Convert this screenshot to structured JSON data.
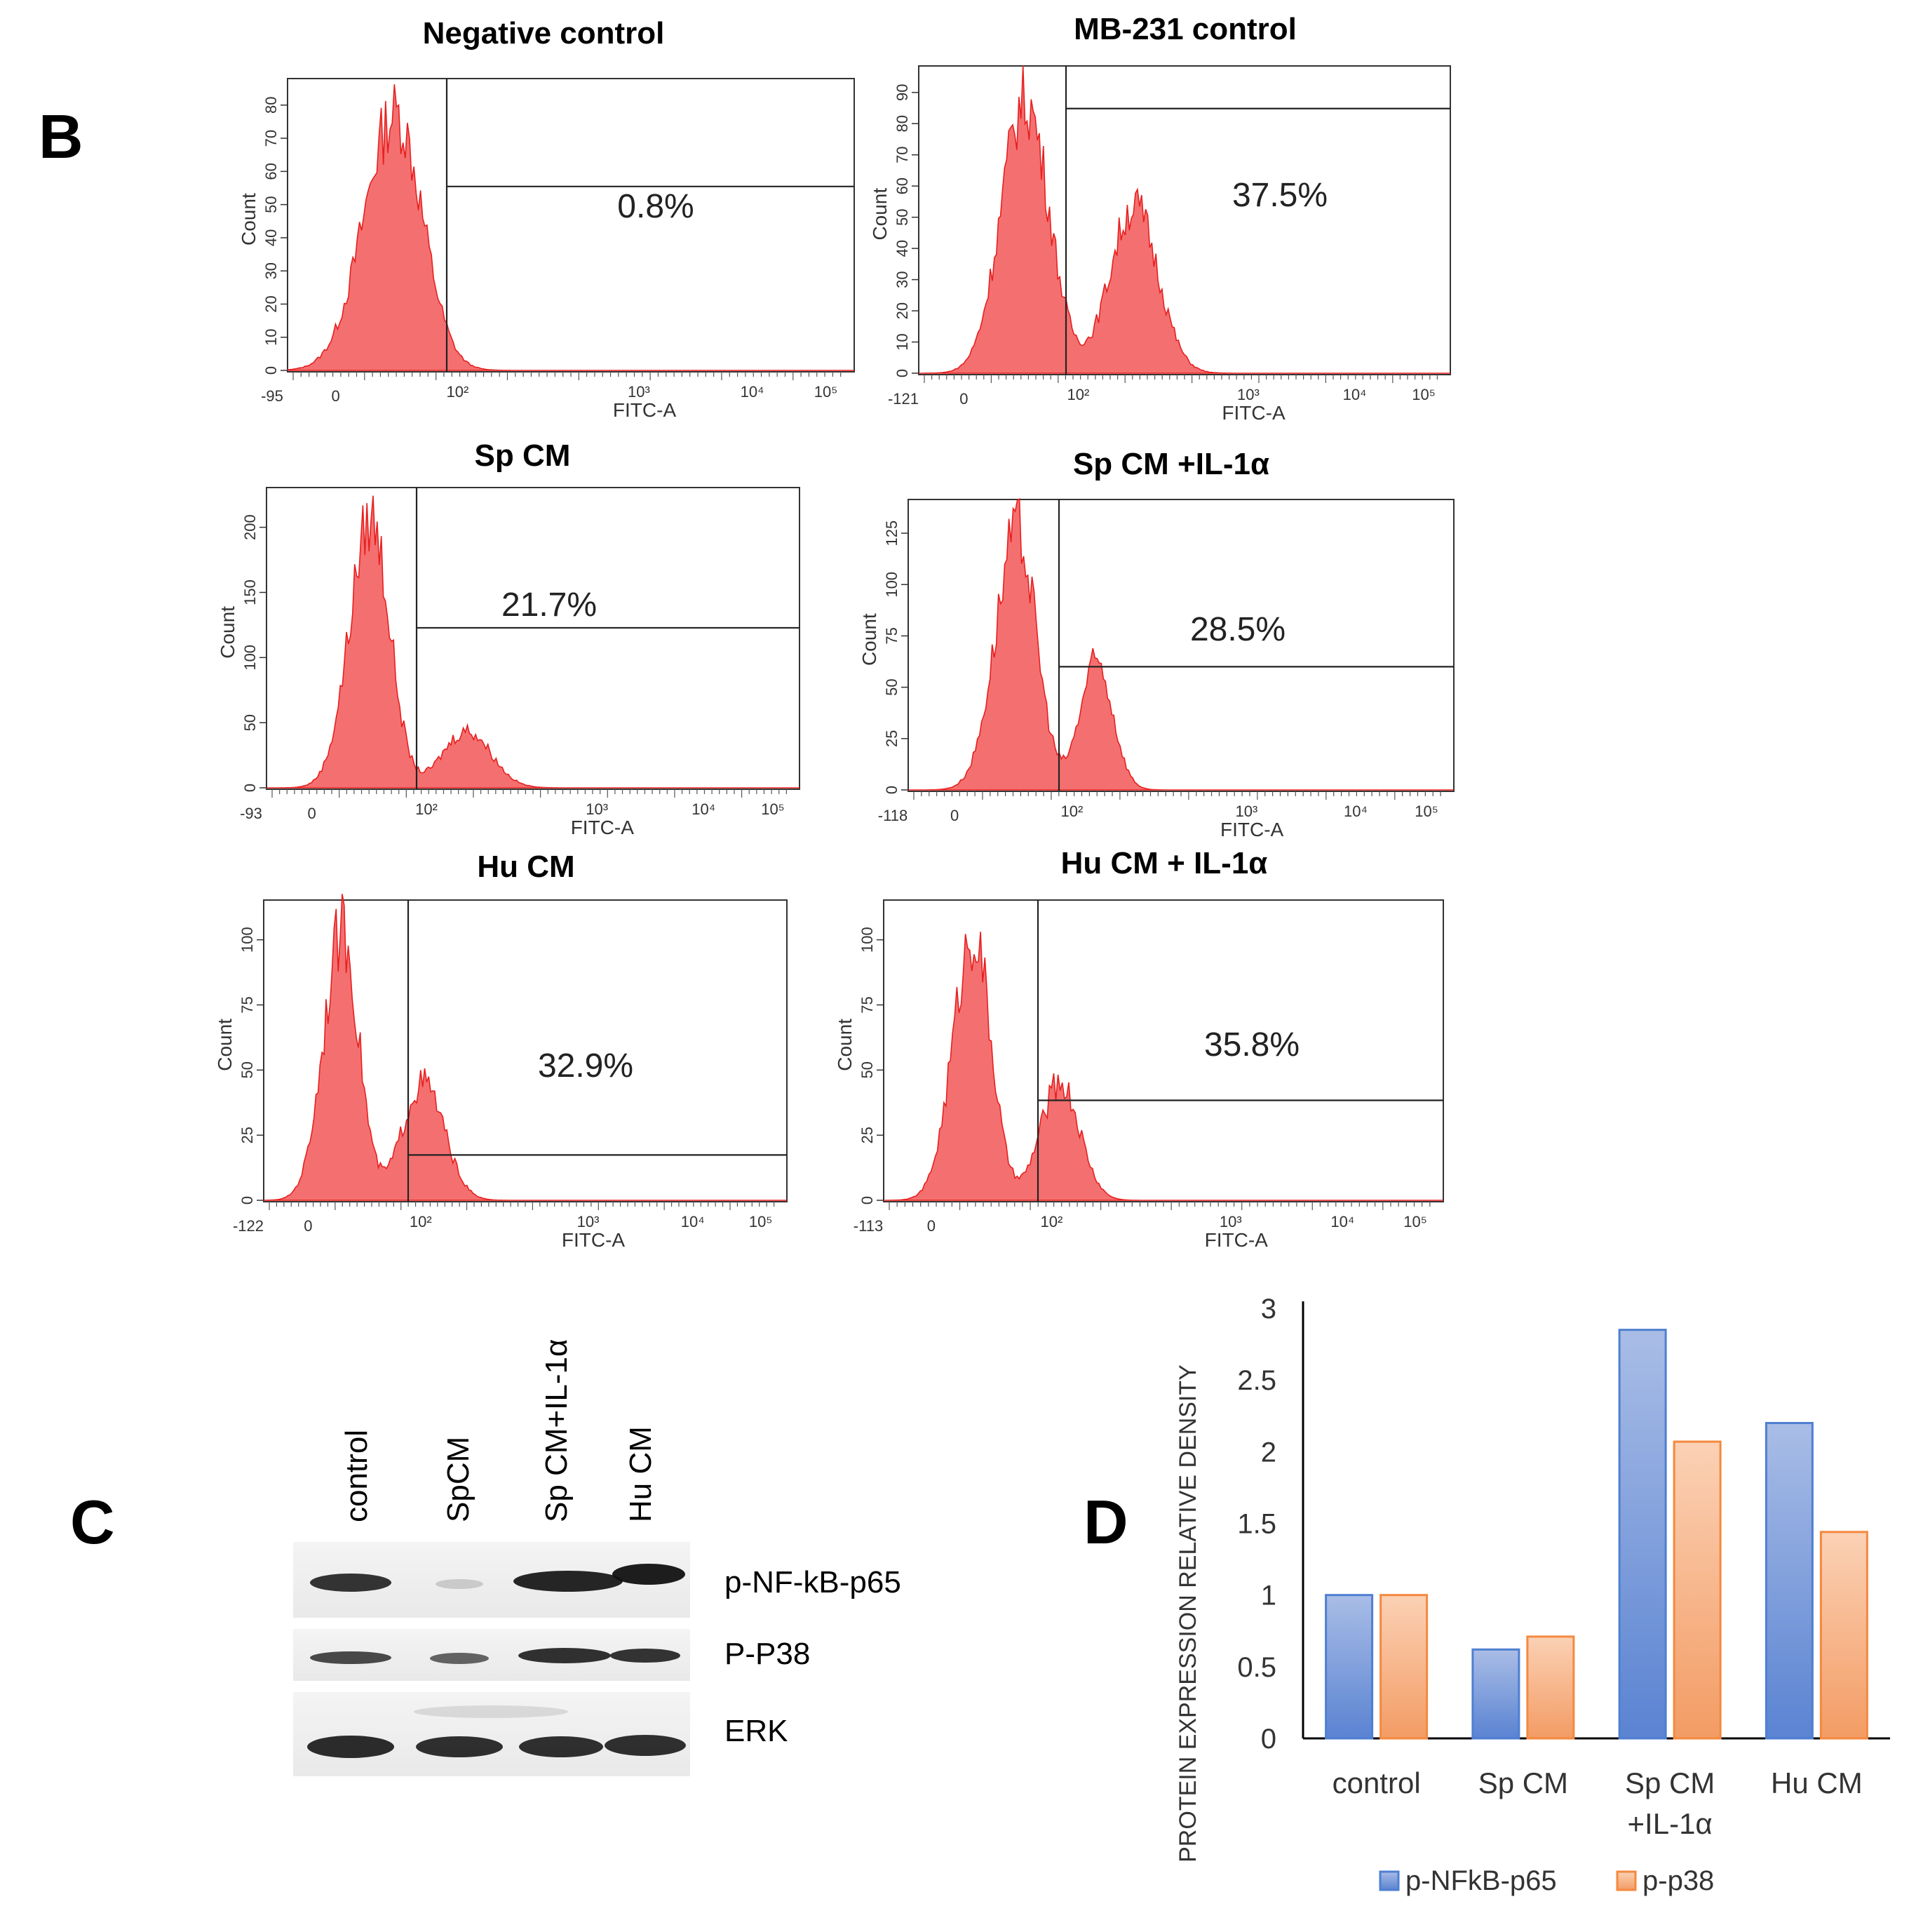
{
  "panels": {
    "b": "B",
    "c": "C",
    "d": "D"
  },
  "flow": {
    "x_axis_label": "FITC-A",
    "y_axis_label": "Count",
    "x_ticks": [
      "10²",
      "10³",
      "10⁴",
      "10⁵"
    ],
    "histograms": [
      {
        "title": "Negative control",
        "percent": "0.8%",
        "x_min_label": "-95",
        "y_ticks": [
          "0",
          "10",
          "20",
          "30",
          "40",
          "50",
          "60",
          "70",
          "80"
        ],
        "hist_color": "#f25050"
      },
      {
        "title": "MB-231 control",
        "percent": "37.5%",
        "x_min_label": "-121",
        "y_ticks": [
          "0",
          "10",
          "20",
          "30",
          "40",
          "50",
          "60",
          "70",
          "80",
          "90"
        ],
        "hist_color": "#f25050"
      },
      {
        "title": "Sp CM",
        "percent": "21.7%",
        "x_min_label": "-93",
        "y_ticks": [
          "0",
          "50",
          "100",
          "150",
          "200"
        ],
        "hist_color": "#f25050"
      },
      {
        "title": "Sp CM +IL-1α",
        "percent": "28.5%",
        "x_min_label": "-118",
        "y_ticks": [
          "0",
          "25",
          "50",
          "75",
          "100",
          "125"
        ],
        "hist_color": "#f25050"
      },
      {
        "title": "Hu CM",
        "percent": "32.9%",
        "x_min_label": "-122",
        "y_ticks": [
          "0",
          "25",
          "50",
          "75",
          "100"
        ],
        "hist_color": "#f25050"
      },
      {
        "title": "Hu CM + IL-1α",
        "percent": "35.8%",
        "x_min_label": "-113",
        "y_ticks": [
          "0",
          "25",
          "50",
          "75",
          "100"
        ],
        "hist_color": "#f25050"
      }
    ]
  },
  "blot": {
    "lanes": [
      "control",
      "SpCM",
      "Sp CM+IL-1α",
      "Hu CM"
    ],
    "rows": [
      "p-NF-kB-p65",
      "P-P38",
      "ERK"
    ]
  },
  "chart_data": {
    "type": "bar",
    "categories": [
      "control",
      "Sp CM",
      "Sp CM +IL-1α",
      "Hu CM"
    ],
    "category_lines": [
      [
        "control"
      ],
      [
        "Sp CM"
      ],
      [
        "Sp CM",
        "+IL-1α"
      ],
      [
        "Hu CM"
      ]
    ],
    "series": [
      {
        "name": "p-NFkB-p65",
        "values": [
          1.0,
          0.62,
          2.85,
          2.2
        ],
        "color": "#4f7fd1"
      },
      {
        "name": "p-p38",
        "values": [
          1.0,
          0.71,
          2.07,
          1.44
        ],
        "color": "#f4893f"
      }
    ],
    "ylabel": "PROTEIN EXPRESSION RELATIVE  DENSITY",
    "xlabel": "",
    "ylim": [
      0,
      3
    ],
    "yticks": [
      "0",
      "0.5",
      "1",
      "1.5",
      "2",
      "2.5",
      "3"
    ],
    "legend": "bottom"
  }
}
